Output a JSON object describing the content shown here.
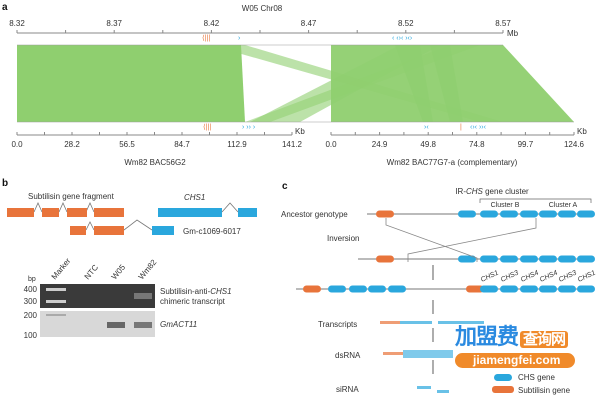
{
  "panel_a": {
    "label": "a",
    "title": "W05 Chr08",
    "top_ticks": [
      "8.32",
      "8.37",
      "8.42",
      "8.47",
      "8.52",
      "8.57"
    ],
    "top_unit": "Mb",
    "left_ticks": [
      "0.0",
      "28.2",
      "56.5",
      "84.7",
      "112.9",
      "141.2"
    ],
    "left_unit": "Kb",
    "left_name": "Wm82 BAC56G2",
    "right_ticks": [
      "0.0",
      "24.9",
      "49.8",
      "74.8",
      "99.7",
      "124.6"
    ],
    "right_unit": "Kb",
    "right_name": "Wm82 BAC77G7-a (complementary)",
    "colors": {
      "synteny": "#8fcf6f",
      "subtilisin": "#e8743b",
      "chs": "#2aa7dd"
    }
  },
  "panel_b": {
    "label": "b",
    "fragment_label": "Subtilisin gene fragment",
    "chs_label": "CHS1",
    "transcript_label": "Gm-c1069-6017",
    "bp_label": "bp",
    "bp_ticks": [
      "400",
      "300",
      "200",
      "100"
    ],
    "lanes": [
      "Marker",
      "NTC",
      "W05",
      "Wm82"
    ],
    "gel1_label_a": "Subtilisin-anti-",
    "gel1_label_b": "CHS1",
    "gel1_label_c": "chimeric transcript",
    "gel2_label": "GmACT11"
  },
  "panel_c": {
    "label": "c",
    "cluster_title_a": "IR-",
    "cluster_title_b": "CHS",
    "cluster_title_c": " gene cluster",
    "cluster_b": "Cluster B",
    "cluster_a": "Cluster A",
    "ancestor": "Ancestor genotype",
    "inversion": "Inversion",
    "genes": [
      "CHS1",
      "CHS3",
      "CHS4",
      "CHS4",
      "CHS3",
      "CHS1"
    ],
    "transcripts": "Transcripts",
    "dsrna": "dsRNA",
    "sirna": "siRNA",
    "legend_chs": "CHS gene",
    "legend_subtilisin": "Subtilisin gene"
  },
  "watermark": {
    "cn": "加盟费",
    "cn_box": "查询网",
    "url": "jiamengfei.com"
  }
}
